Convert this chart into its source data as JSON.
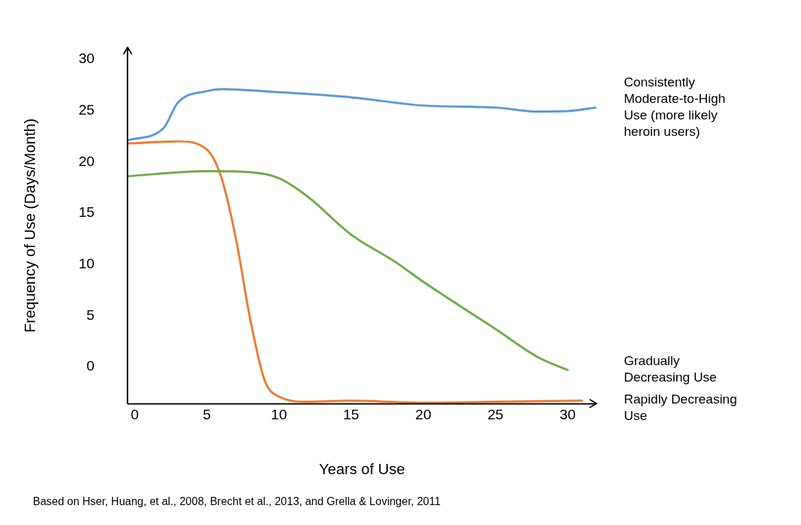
{
  "chart_data": {
    "type": "line",
    "xlabel": "Years of Use",
    "ylabel": "Frequency of Use (Days/Month)",
    "xlim": [
      -0.5,
      32
    ],
    "ylim": [
      -3.6,
      31.2
    ],
    "xticks": [
      0,
      5,
      10,
      15,
      20,
      25,
      30
    ],
    "yticks": [
      0,
      5,
      10,
      15,
      20,
      25,
      30
    ],
    "grid": false,
    "legend": false,
    "marker": "none",
    "line_style": "solid",
    "series": [
      {
        "name": "Consistently Moderate-to-High Use (more likely heroin users)",
        "color": "#5b9bd5",
        "x": [
          -0.5,
          2,
          3,
          5,
          6,
          10,
          15,
          20,
          25,
          28,
          30,
          32
        ],
        "values": [
          22.1,
          23.3,
          25.8,
          26.9,
          27.1,
          26.8,
          26.3,
          25.5,
          25.3,
          24.9,
          24.95,
          25.3
        ]
      },
      {
        "name": "Gradually Decreasing Use",
        "color": "#70ad47",
        "x": [
          -0.5,
          5,
          8,
          10,
          12,
          15,
          18,
          20,
          25,
          28,
          30
        ],
        "values": [
          18.6,
          19.1,
          19.0,
          18.4,
          16.6,
          12.9,
          10.3,
          8.3,
          3.7,
          0.9,
          -0.3
        ]
      },
      {
        "name": "Rapidly Decreasing Use",
        "color": "#ed7d31",
        "x": [
          -0.5,
          3,
          5,
          6,
          7,
          8,
          9,
          10,
          12,
          15,
          20,
          25,
          31
        ],
        "values": [
          21.8,
          22.0,
          21.2,
          18.5,
          12.6,
          4.7,
          -1.3,
          -2.9,
          -3.4,
          -3.3,
          -3.5,
          -3.4,
          -3.3
        ]
      }
    ],
    "annotations": [
      "Based on Hser, Huang, et al., 2008, Brecht et al., 2013, and Grella & Lovinger, 2011"
    ]
  }
}
